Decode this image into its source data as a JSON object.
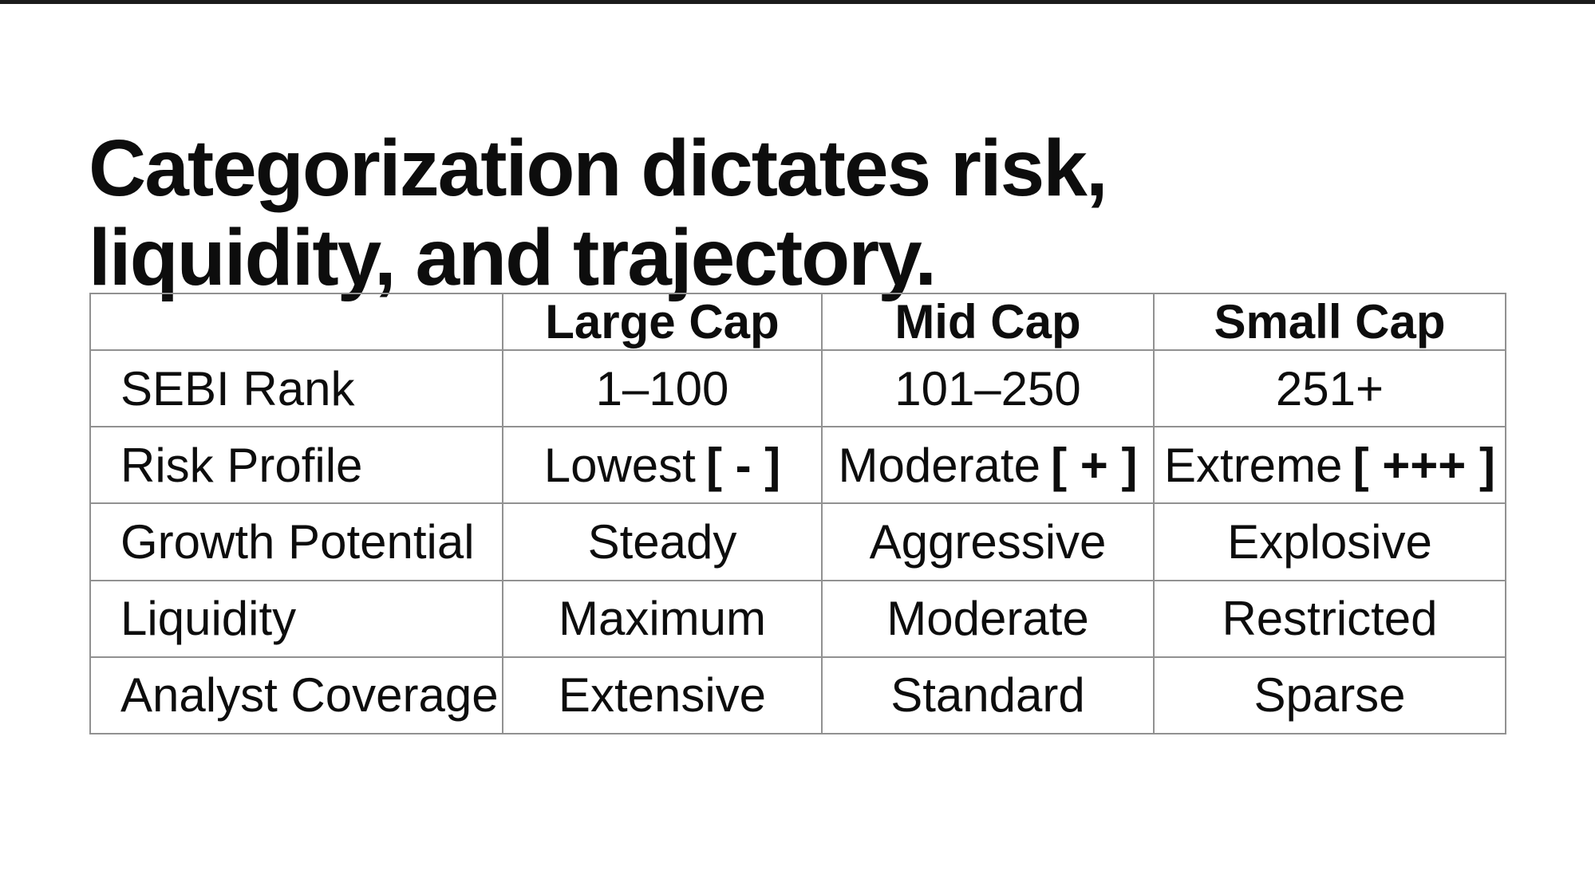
{
  "page": {
    "title_line1": "Categorization dictates risk,",
    "title_line2": "liquidity, and trajectory."
  },
  "colors": {
    "background": "#ffffff",
    "text": "#0d0d0d",
    "table_border": "#919191",
    "top_bar": "#1c1c1c"
  },
  "table": {
    "columns": [
      "",
      "Large Cap",
      "Mid Cap",
      "Small Cap"
    ],
    "rows": [
      {
        "label": "SEBI Rank",
        "cells": [
          {
            "text": "1–100"
          },
          {
            "text": "101–250"
          },
          {
            "text": "251+"
          }
        ]
      },
      {
        "label": "Risk Profile",
        "cells": [
          {
            "text": "Lowest",
            "badge": "[ - ]"
          },
          {
            "text": "Moderate",
            "badge": "[ + ]"
          },
          {
            "text": "Extreme",
            "badge": "[ +++ ]"
          }
        ]
      },
      {
        "label": "Growth Potential",
        "cells": [
          {
            "text": "Steady"
          },
          {
            "text": "Aggressive"
          },
          {
            "text": "Explosive"
          }
        ]
      },
      {
        "label": "Liquidity",
        "cells": [
          {
            "text": "Maximum"
          },
          {
            "text": "Moderate"
          },
          {
            "text": "Restricted"
          }
        ]
      },
      {
        "label": "Analyst Coverage",
        "cells": [
          {
            "text": "Extensive"
          },
          {
            "text": "Standard"
          },
          {
            "text": "Sparse"
          }
        ]
      }
    ]
  }
}
